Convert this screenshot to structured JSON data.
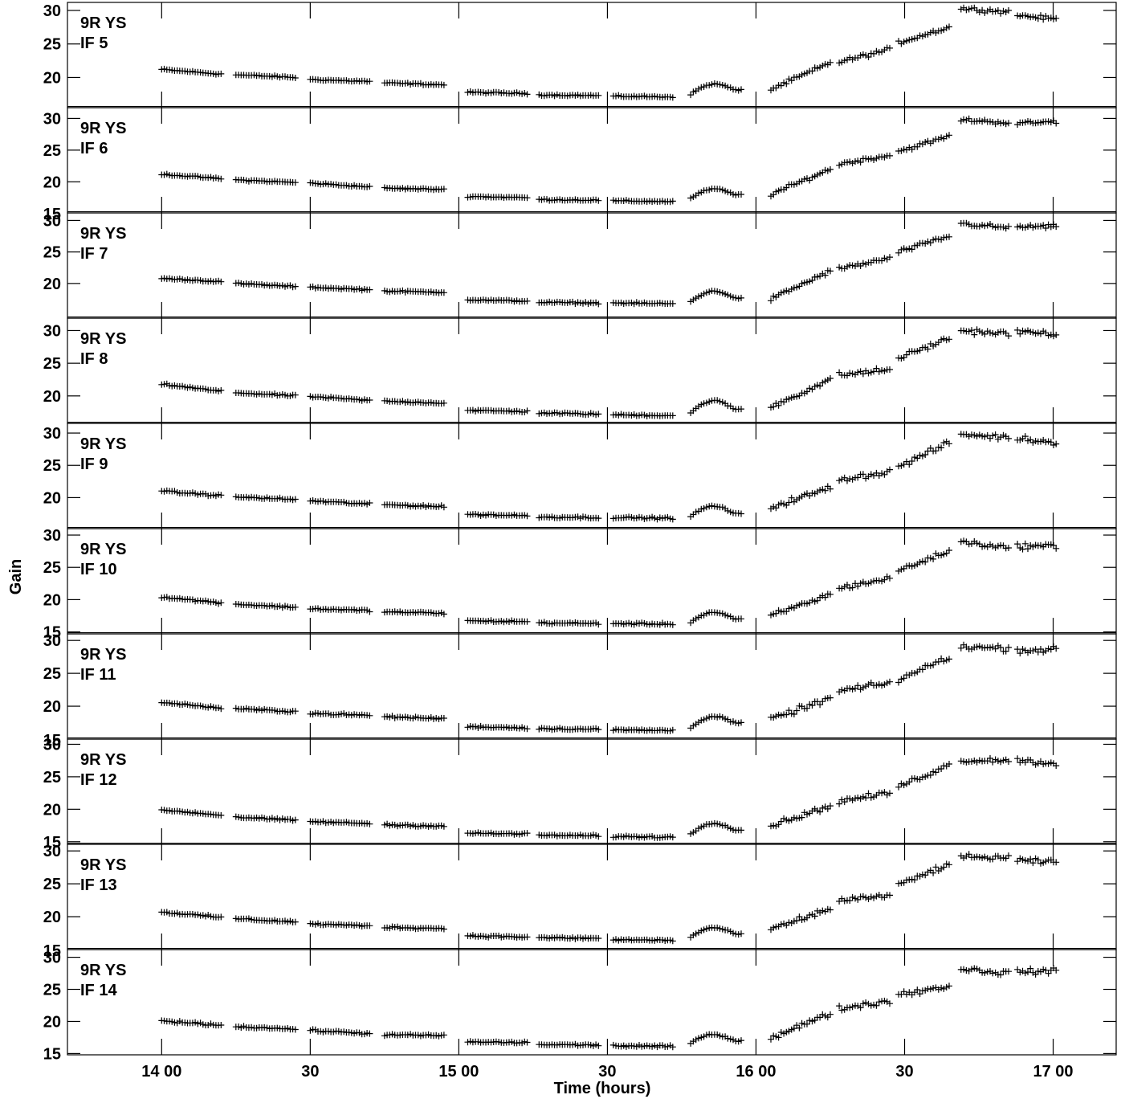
{
  "chart_data": {
    "type": "scatter",
    "title": "",
    "xlabel": "Time (hours)",
    "ylabel": "Gain",
    "marker": "+",
    "color": "#000000",
    "x_range_hours": [
      13.683,
      17.212
    ],
    "x_ticks": [
      {
        "value": 14.0,
        "label": "14 00"
      },
      {
        "value": 14.5,
        "label": "30"
      },
      {
        "value": 15.0,
        "label": "15 00"
      },
      {
        "value": 15.5,
        "label": "30"
      },
      {
        "value": 16.0,
        "label": "16 00"
      },
      {
        "value": 16.5,
        "label": "30"
      },
      {
        "value": 17.0,
        "label": "17 00"
      }
    ],
    "y_ticks": [
      15,
      20,
      25,
      30
    ],
    "scans": [
      {
        "start": 14.0,
        "end": 14.2,
        "pre": 1.0,
        "post": 1.0
      },
      {
        "start": 14.25,
        "end": 14.45,
        "pre": 1.0,
        "post": 1.0
      },
      {
        "start": 14.5,
        "end": 14.7,
        "pre": 1.0,
        "post": 1.0
      },
      {
        "start": 14.75,
        "end": 14.95,
        "pre": 1.0,
        "post": 1.0
      },
      {
        "start": 15.03,
        "end": 15.23,
        "pre": 0.0,
        "post": 0.0
      },
      {
        "start": 15.27,
        "end": 15.47,
        "pre": 0.0,
        "post": 0.0
      },
      {
        "start": 15.52,
        "end": 15.72,
        "pre": 0.0,
        "post": 0.0
      },
      {
        "start": 15.78,
        "end": 15.95,
        "pre": 0.2,
        "post": 0.3
      },
      {
        "start": 16.05,
        "end": 16.25,
        "pre": 1.0,
        "post": 1.0
      },
      {
        "start": 16.28,
        "end": 16.45,
        "pre": 1.0,
        "post": 1.0
      },
      {
        "start": 16.48,
        "end": 16.65,
        "pre": 1.0,
        "post": 1.0
      },
      {
        "start": 16.69,
        "end": 16.85,
        "pre": 1.0,
        "post": 1.0
      },
      {
        "start": 16.88,
        "end": 17.01,
        "pre": 1.0,
        "post": 1.0
      }
    ],
    "panels": [
      {
        "source": "9R YS",
        "if": "IF 5",
        "y_range": [
          15.5,
          31.2
        ],
        "y_ticks": [
          20,
          25,
          30
        ],
        "levels": [
          [
            21.2,
            20.5
          ],
          [
            20.4,
            20.0
          ],
          [
            19.7,
            19.4
          ],
          [
            19.2,
            18.9
          ],
          [
            17.8,
            17.6
          ],
          [
            17.4,
            17.3
          ],
          [
            17.2,
            17.1
          ],
          [
            17.5,
            18.2
          ],
          [
            18.2,
            22.2
          ],
          [
            22.3,
            24.2
          ],
          [
            25.2,
            27.5
          ],
          [
            30.3,
            29.8
          ],
          [
            29.3,
            28.7
          ]
        ],
        "bump": 1.2,
        "noise": 0.35
      },
      {
        "source": "9R YS",
        "if": "IF 6",
        "y_range": [
          15.1,
          31.7
        ],
        "y_ticks": [
          20,
          25,
          30
        ],
        "min_label": "15",
        "levels": [
          [
            21.2,
            20.5
          ],
          [
            20.3,
            19.9
          ],
          [
            19.8,
            19.2
          ],
          [
            19.0,
            18.8
          ],
          [
            17.7,
            17.5
          ],
          [
            17.2,
            17.1
          ],
          [
            17.0,
            16.9
          ],
          [
            17.4,
            18.0
          ],
          [
            18.0,
            22.0
          ],
          [
            22.8,
            24.2
          ],
          [
            24.8,
            27.2
          ],
          [
            29.8,
            29.3
          ],
          [
            29.2,
            29.5
          ]
        ],
        "bump": 1.2,
        "noise": 0.35
      },
      {
        "source": "9R YS",
        "if": "IF 7",
        "y_range": [
          14.5,
          31.2
        ],
        "y_ticks": [
          20,
          25,
          30
        ],
        "levels": [
          [
            20.8,
            20.3
          ],
          [
            20.0,
            19.5
          ],
          [
            19.4,
            19.0
          ],
          [
            18.8,
            18.6
          ],
          [
            17.4,
            17.2
          ],
          [
            17.0,
            16.9
          ],
          [
            16.9,
            16.8
          ],
          [
            17.1,
            17.7
          ],
          [
            17.5,
            22.0
          ],
          [
            22.3,
            24.0
          ],
          [
            25.0,
            27.5
          ],
          [
            29.5,
            28.8
          ],
          [
            29.0,
            29.0
          ]
        ],
        "bump": 1.4,
        "noise": 0.4
      },
      {
        "source": "9R YS",
        "if": "IF 8",
        "y_range": [
          15.8,
          31.9
        ],
        "y_ticks": [
          20,
          25,
          30
        ],
        "levels": [
          [
            21.8,
            20.7
          ],
          [
            20.5,
            20.0
          ],
          [
            19.9,
            19.3
          ],
          [
            19.2,
            18.9
          ],
          [
            17.8,
            17.6
          ],
          [
            17.4,
            17.2
          ],
          [
            17.1,
            17.0
          ],
          [
            17.4,
            18.0
          ],
          [
            18.3,
            22.5
          ],
          [
            23.2,
            24.0
          ],
          [
            25.8,
            28.8
          ],
          [
            30.0,
            29.5
          ],
          [
            29.8,
            29.5
          ]
        ],
        "bump": 1.6,
        "noise": 0.5
      },
      {
        "source": "9R YS",
        "if": "IF 9",
        "y_range": [
          15.2,
          31.5
        ],
        "y_ticks": [
          20,
          25,
          30
        ],
        "levels": [
          [
            21.0,
            20.3
          ],
          [
            20.1,
            19.7
          ],
          [
            19.5,
            19.0
          ],
          [
            18.9,
            18.6
          ],
          [
            17.4,
            17.2
          ],
          [
            17.0,
            16.9
          ],
          [
            16.9,
            16.8
          ],
          [
            17.1,
            17.5
          ],
          [
            18.5,
            21.5
          ],
          [
            22.8,
            24.0
          ],
          [
            24.8,
            28.5
          ],
          [
            29.8,
            29.3
          ],
          [
            29.2,
            28.5
          ]
        ],
        "bump": 1.4,
        "noise": 0.55
      },
      {
        "source": "9R YS",
        "if": "IF 10",
        "y_range": [
          14.7,
          31.0
        ],
        "y_ticks": [
          15,
          20,
          25,
          30
        ],
        "levels": [
          [
            20.4,
            19.5
          ],
          [
            19.3,
            18.8
          ],
          [
            18.6,
            18.3
          ],
          [
            18.1,
            17.9
          ],
          [
            16.7,
            16.6
          ],
          [
            16.4,
            16.3
          ],
          [
            16.3,
            16.2
          ],
          [
            16.5,
            17.0
          ],
          [
            17.5,
            20.8
          ],
          [
            21.8,
            23.3
          ],
          [
            24.5,
            27.5
          ],
          [
            29.0,
            28.0
          ],
          [
            28.3,
            28.3
          ]
        ],
        "bump": 1.3,
        "noise": 0.5
      },
      {
        "source": "9R YS",
        "if": "IF 11",
        "y_range": [
          15.0,
          31.0
        ],
        "y_ticks": [
          20,
          25,
          30
        ],
        "min_label": "15",
        "levels": [
          [
            20.6,
            19.7
          ],
          [
            19.6,
            19.2
          ],
          [
            18.9,
            18.6
          ],
          [
            18.4,
            18.1
          ],
          [
            16.9,
            16.7
          ],
          [
            16.6,
            16.5
          ],
          [
            16.4,
            16.3
          ],
          [
            16.8,
            17.5
          ],
          [
            18.0,
            21.2
          ],
          [
            22.3,
            23.5
          ],
          [
            24.0,
            27.5
          ],
          [
            29.0,
            28.8
          ],
          [
            28.5,
            28.6
          ]
        ],
        "bump": 1.3,
        "noise": 0.55
      },
      {
        "source": "9R YS",
        "if": "IF 12",
        "y_range": [
          14.6,
          30.8
        ],
        "y_ticks": [
          15,
          20,
          25,
          30
        ],
        "levels": [
          [
            19.9,
            19.1
          ],
          [
            18.8,
            18.3
          ],
          [
            18.1,
            17.8
          ],
          [
            17.6,
            17.4
          ],
          [
            16.3,
            16.2
          ],
          [
            16.0,
            15.9
          ],
          [
            15.8,
            15.7
          ],
          [
            16.2,
            16.8
          ],
          [
            17.5,
            20.5
          ],
          [
            21.2,
            22.5
          ],
          [
            23.5,
            26.8
          ],
          [
            27.5,
            27.6
          ],
          [
            27.5,
            27.0
          ]
        ],
        "bump": 1.4,
        "noise": 0.5
      },
      {
        "source": "9R YS",
        "if": "IF 13",
        "y_range": [
          15.0,
          31.0
        ],
        "y_ticks": [
          20,
          25,
          30
        ],
        "min_label": "15",
        "levels": [
          [
            20.7,
            19.9
          ],
          [
            19.7,
            19.2
          ],
          [
            18.9,
            18.6
          ],
          [
            18.4,
            18.2
          ],
          [
            17.1,
            16.9
          ],
          [
            16.8,
            16.7
          ],
          [
            16.5,
            16.4
          ],
          [
            16.9,
            17.4
          ],
          [
            18.0,
            21.2
          ],
          [
            22.5,
            23.2
          ],
          [
            24.8,
            28.0
          ],
          [
            29.0,
            29.0
          ],
          [
            28.5,
            28.3
          ]
        ],
        "bump": 1.2,
        "noise": 0.5
      },
      {
        "source": "9R YS",
        "if": "IF 14",
        "y_range": [
          14.8,
          31.2
        ],
        "y_ticks": [
          15,
          20,
          25,
          30
        ],
        "levels": [
          [
            20.1,
            19.4
          ],
          [
            19.2,
            18.8
          ],
          [
            18.6,
            18.1
          ],
          [
            17.9,
            17.8
          ],
          [
            16.8,
            16.7
          ],
          [
            16.4,
            16.3
          ],
          [
            16.2,
            16.1
          ],
          [
            16.6,
            17.0
          ],
          [
            17.5,
            21.2
          ],
          [
            22.0,
            23.2
          ],
          [
            24.2,
            25.5
          ],
          [
            28.2,
            27.5
          ],
          [
            27.8,
            27.8
          ]
        ],
        "bump": 1.2,
        "noise": 0.55
      }
    ]
  }
}
